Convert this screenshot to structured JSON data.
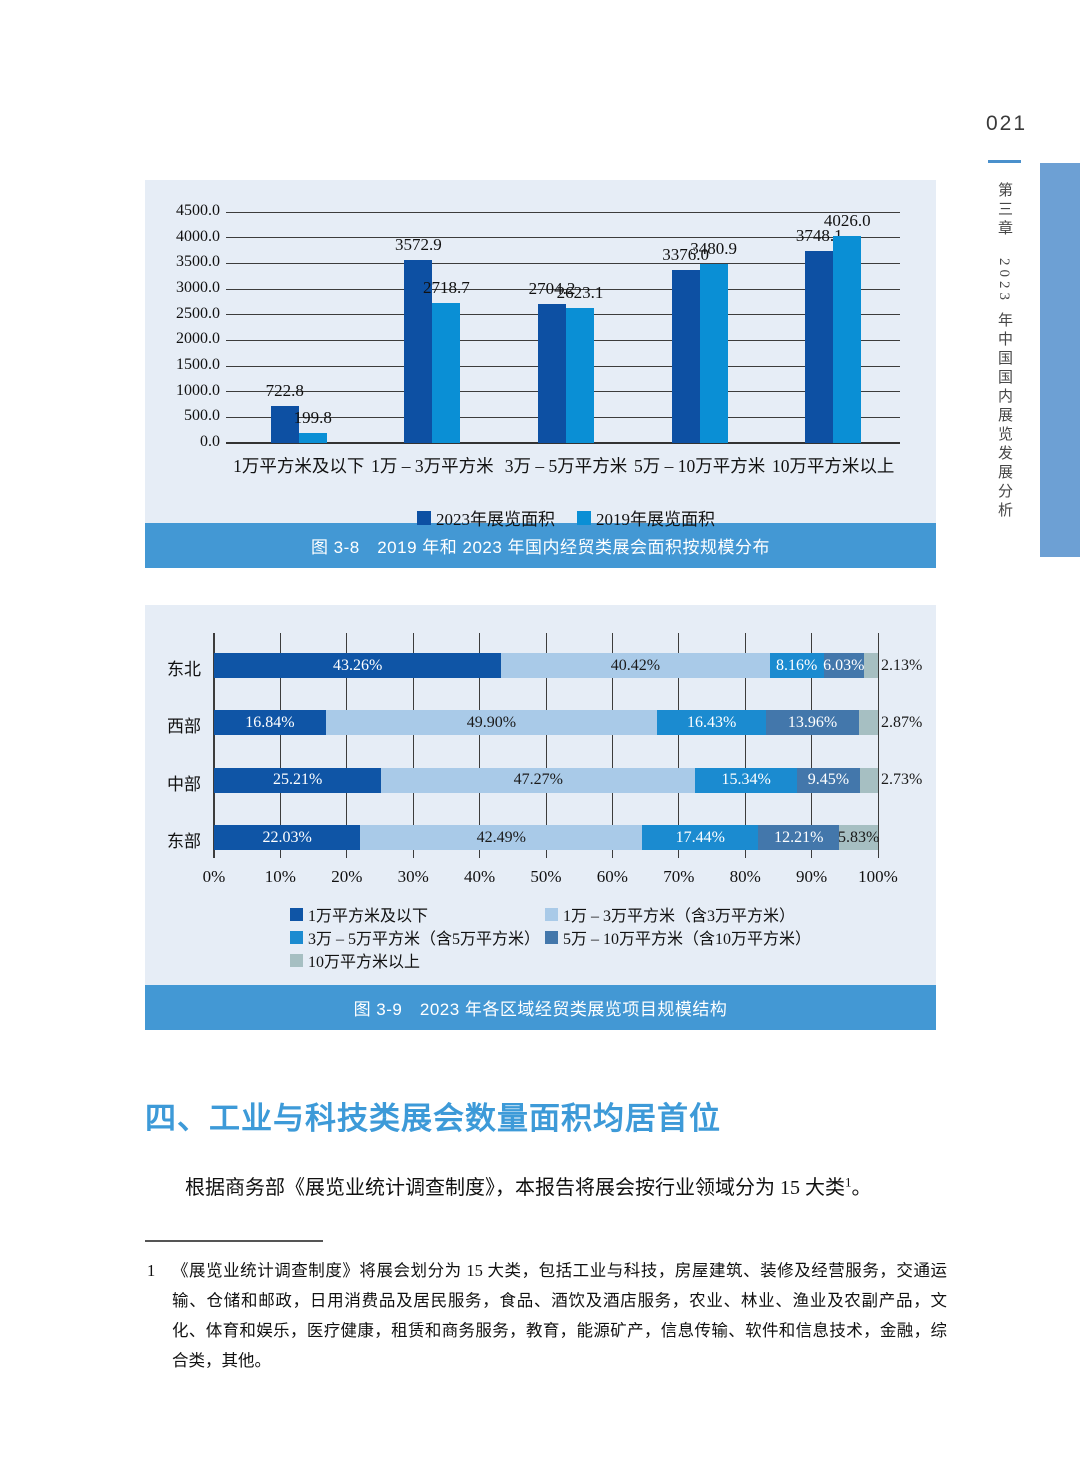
{
  "page": {
    "number": "021",
    "chapter_vertical_title": "第三章　2023 年中国国内展览发展分析"
  },
  "colors": {
    "panel_background": "#e6edf6",
    "caption_band": "#4398d4",
    "heading_blue": "#3d9ad8",
    "sidebar_accent": "#6da0d4",
    "grid_line": "#3c3c3c"
  },
  "chart_data": [
    {
      "type": "bar",
      "title": "图 3-8　2019 年和 2023 年国内经贸类展会面积按规模分布",
      "categories": [
        "1万平方米及以下",
        "1万 – 3万平方米",
        "3万 – 5万平方米",
        "5万 – 10万平方米",
        "10万平方米以上"
      ],
      "series": [
        {
          "name": "2023年展览面积",
          "color": "#0d50a3",
          "values": [
            722.8,
            3572.9,
            2704.2,
            3376.0,
            3748.1
          ],
          "labels": [
            "722.8",
            "3572.9",
            "2704.2",
            "3376.0",
            "3748.1"
          ]
        },
        {
          "name": "2019年展览面积",
          "color": "#0a8fd5",
          "values": [
            199.8,
            2718.7,
            2623.1,
            3480.9,
            4026.0
          ],
          "labels": [
            "199.8",
            "2718.7",
            "2623.1",
            "3480.9",
            "4026.0"
          ]
        }
      ],
      "xlabel": "",
      "ylabel": "",
      "ylim": [
        0,
        4500
      ],
      "ytick_step": 500,
      "grid": true,
      "legend_position": "bottom"
    },
    {
      "type": "stacked-bar-horizontal",
      "title": "图 3-9　2023 年各区域经贸类展览项目规模结构",
      "categories": [
        "东北",
        "西部",
        "中部",
        "东部"
      ],
      "segments": [
        {
          "name": "1万平方米及以下",
          "color": "#0f55a6",
          "label_color": "#ffffff"
        },
        {
          "name": "1万 – 3万平方米（含3万平方米）",
          "color": "#a9cae8",
          "label_color": "#1a1a1a"
        },
        {
          "name": "3万 – 5万平方米（含5万平方米）",
          "color": "#1b8bd0",
          "label_color": "#ffffff"
        },
        {
          "name": "5万 – 10万平方米（含10万平方米）",
          "color": "#4377ab",
          "label_color": "#ffffff"
        },
        {
          "name": "10万平方米以上",
          "color": "#a6bfc2",
          "label_color": "#1a1a1a"
        }
      ],
      "rows": [
        {
          "category": "东北",
          "values": [
            43.26,
            40.42,
            8.16,
            6.03,
            2.13
          ],
          "labels": [
            "43.26%",
            "40.42%",
            "8.16%",
            "6.03%",
            "2.13%"
          ]
        },
        {
          "category": "西部",
          "values": [
            16.84,
            49.9,
            16.43,
            13.96,
            2.87
          ],
          "labels": [
            "16.84%",
            "49.90%",
            "16.43%",
            "13.96%",
            "2.87%"
          ]
        },
        {
          "category": "中部",
          "values": [
            25.21,
            47.27,
            15.34,
            9.45,
            2.73
          ],
          "labels": [
            "25.21%",
            "47.27%",
            "15.34%",
            "9.45%",
            "2.73%"
          ]
        },
        {
          "category": "东部",
          "values": [
            22.03,
            42.49,
            17.44,
            12.21,
            5.83
          ],
          "labels": [
            "22.03%",
            "42.49%",
            "17.44%",
            "12.21%",
            "5.83%"
          ]
        }
      ],
      "xlim": [
        0,
        100
      ],
      "xticks": [
        "0%",
        "10%",
        "20%",
        "30%",
        "40%",
        "50%",
        "60%",
        "70%",
        "80%",
        "90%",
        "100%"
      ],
      "grid": true,
      "legend_position": "bottom"
    }
  ],
  "section": {
    "heading": "四、工业与科技类展会数量面积均居首位",
    "paragraph_text": "根据商务部《展览业统计调查制度》，本报告将展会按行业领域分为 15 大类",
    "paragraph_footnote_ref": "1",
    "paragraph_period": "。"
  },
  "footnote": {
    "marker": "1",
    "text": "《展览业统计调查制度》将展会划分为 15 大类，包括工业与科技，房屋建筑、装修及经营服务，交通运输、仓储和邮政，日用消费品及居民服务，食品、酒饮及酒店服务，农业、林业、渔业及农副产品，文化、体育和娱乐，医疗健康，租赁和商务服务，教育，能源矿产，信息传输、软件和信息技术，金融，综合类，其他。"
  }
}
